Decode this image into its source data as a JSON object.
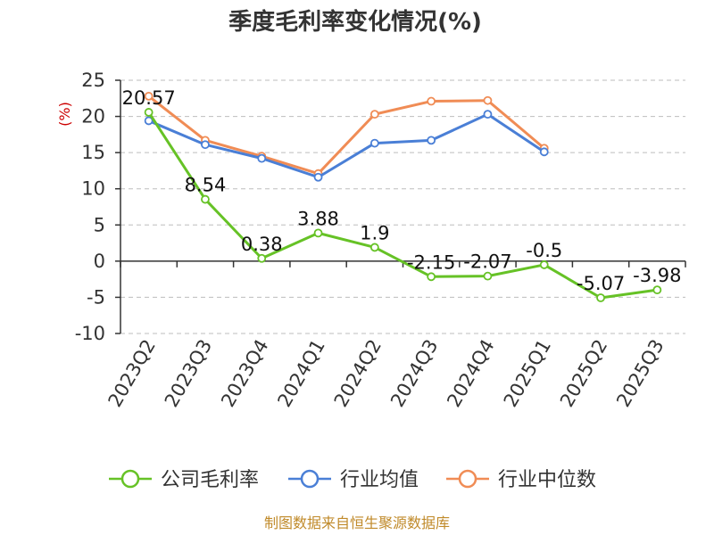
{
  "chart_data": {
    "type": "line",
    "title": "季度毛利率变化情况(%)",
    "ylabel": "(%)",
    "ylim": [
      -10,
      25
    ],
    "yticks": [
      25,
      20,
      15,
      10,
      5,
      0,
      -5,
      -10
    ],
    "categories": [
      "2023Q2",
      "2023Q3",
      "2023Q4",
      "2024Q1",
      "2024Q2",
      "2024Q3",
      "2024Q4",
      "2025Q1",
      "2025Q2",
      "2025Q3"
    ],
    "grid": true,
    "legend_position": "bottom",
    "series": [
      {
        "name": "公司毛利率",
        "color": "#66c226",
        "values": [
          20.57,
          8.54,
          0.38,
          3.88,
          1.9,
          -2.15,
          -2.07,
          -0.5,
          -5.07,
          -3.98
        ],
        "labels": [
          "20.57",
          "8.54",
          "0.38",
          "3.88",
          "1.9",
          "-2.15",
          "-2.07",
          "-0.5",
          "-5.07",
          "-3.98"
        ]
      },
      {
        "name": "行业均值",
        "color": "#4a7fd6",
        "values": [
          19.4,
          16.1,
          14.2,
          11.6,
          16.3,
          16.7,
          20.3,
          15.1,
          null,
          null
        ]
      },
      {
        "name": "行业中位数",
        "color": "#f08c55",
        "values": [
          22.8,
          16.7,
          14.5,
          12.1,
          20.3,
          22.1,
          22.2,
          15.6,
          null,
          null
        ]
      }
    ],
    "source_note": "制图数据来自恒生聚源数据库"
  }
}
